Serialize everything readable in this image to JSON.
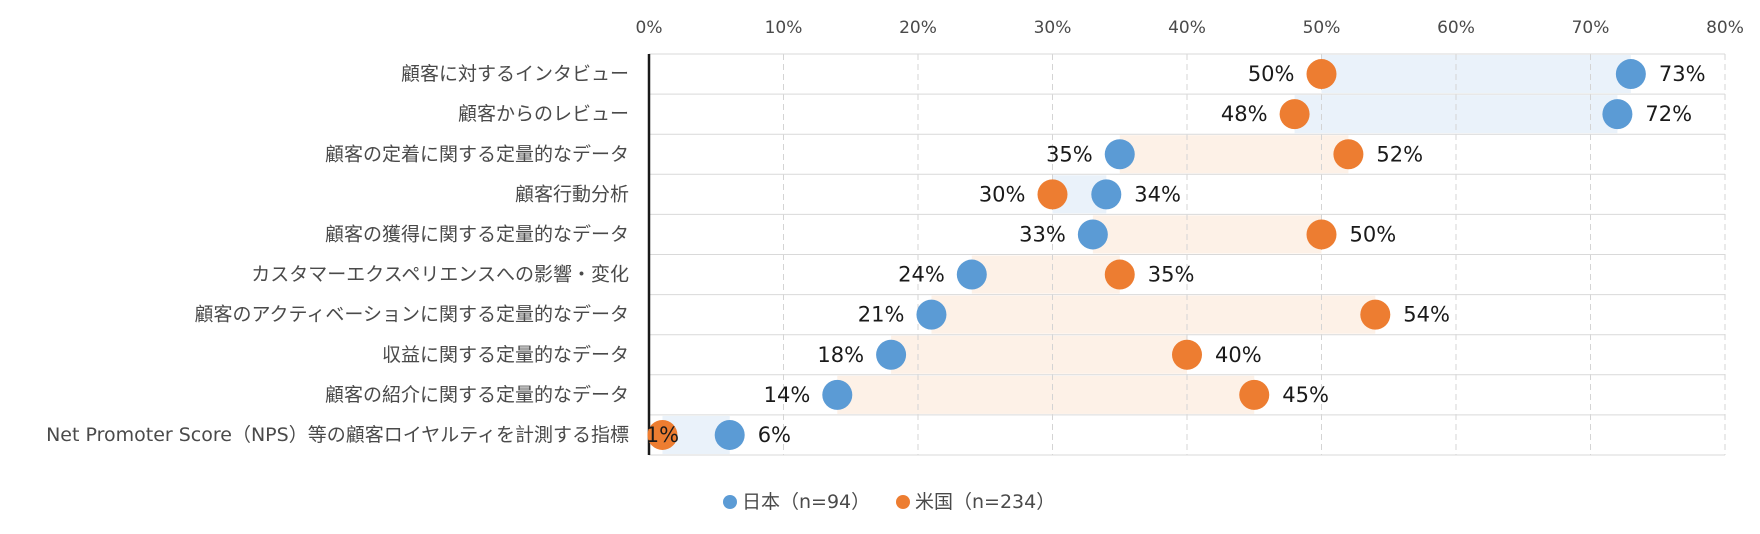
{
  "chart_data": {
    "type": "dumbbell",
    "title": "",
    "xlabel": "",
    "ylabel": "",
    "xlim": [
      0,
      80
    ],
    "x_ticks": [
      "0%",
      "10%",
      "20%",
      "30%",
      "40%",
      "50%",
      "60%",
      "70%",
      "80%"
    ],
    "grid": true,
    "legend_position": "bottom",
    "categories": [
      "顧客に対するインタビュー",
      "顧客からのレビュー",
      "顧客の定着に関する定量的なデータ",
      "顧客行動分析",
      "顧客の獲得に関する定量的なデータ",
      "カスタマーエクスペリエンスへの影響・変化",
      "顧客のアクティベーションに関する定量的なデータ",
      "収益に関する定量的なデータ",
      "顧客の紹介に関する定量的なデータ",
      "Net Promoter Score（NPS）等の顧客ロイヤルティを計測する指標"
    ],
    "series": [
      {
        "name": "日本（n=94）",
        "color": "#5b9bd5",
        "values": [
          73,
          72,
          35,
          34,
          33,
          24,
          21,
          18,
          14,
          6
        ],
        "labels": [
          "73%",
          "72%",
          "35%",
          "34%",
          "33%",
          "24%",
          "21%",
          "18%",
          "14%",
          "6%"
        ]
      },
      {
        "name": "米国（n=234）",
        "color": "#ed7d31",
        "values": [
          50,
          48,
          52,
          30,
          50,
          35,
          54,
          40,
          45,
          1
        ],
        "labels": [
          "50%",
          "48%",
          "52%",
          "30%",
          "50%",
          "35%",
          "54%",
          "40%",
          "45%",
          "1%"
        ]
      }
    ],
    "band_colors": {
      "japan_higher": "#eaf2fa",
      "us_higher": "#fdf1e7"
    }
  }
}
